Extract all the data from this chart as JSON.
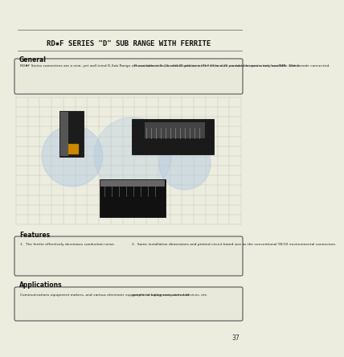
{
  "bg_color": "#ececdf",
  "page_color": "#ececdf",
  "title": "RD✹F SERIES \"D\" SUB RANGE WITH FERRITE",
  "title_fontsize": 6.5,
  "section_general": "General",
  "general_text_left": "RD✹F Series connectors are a new, yet well-tried D-Sub Range.  These connectors are fitted with an inner Ferrite core provided for protection from EMI.  These",
  "general_text_right": "are available in 9, 15, and 25 positions (The 15 and 25 contact versions is only available with female connected.",
  "section_features": "Features",
  "features_text_left": "1.  The ferrite effectively decreases conduction noise.",
  "features_text_right": "2.  Same installation dimensions and printed circuit board size as the conventional 90/10 environmental connectors.",
  "section_applications": "Applications",
  "applications_text_left": "Communications equipment makers, and various electronic equipment including computers and",
  "applications_text_right": "peripheral equipment, control devices, etc.",
  "page_number": "37",
  "line_color": "#777777",
  "text_color": "#111111",
  "box_edge_color": "#555555",
  "box_face_color": "#e8e8db",
  "grid_color": "#bbbbaa",
  "watermark_color": "#b0c8e0"
}
